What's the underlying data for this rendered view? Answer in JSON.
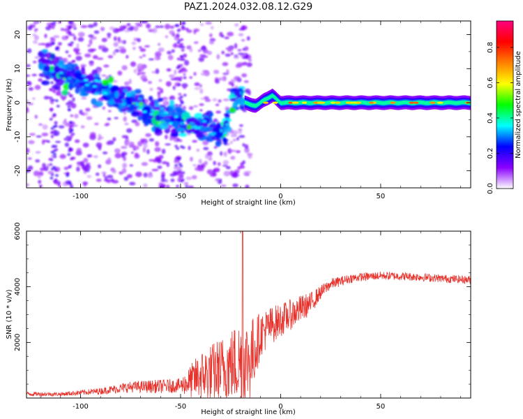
{
  "figure": {
    "title": "PAZ1.2024.032.08.12.G29"
  },
  "chart_data": [
    {
      "type": "heatmap",
      "xlabel": "Height of straight line (km)",
      "ylabel": "Frequency (Hz)",
      "xlim": [
        -127,
        95
      ],
      "ylim": [
        -25,
        24
      ],
      "xticks": [
        -100,
        -50,
        0,
        50
      ],
      "yticks": [
        -20,
        -10,
        0,
        10,
        20
      ],
      "colorbar": {
        "label": "Normalized spectral amplitude",
        "range": [
          0,
          0.95
        ],
        "ticks": [
          "0.0",
          "0.2",
          "0.4",
          "0.6",
          "0.8"
        ],
        "colors": [
          "#ffffff",
          "#8a00ff",
          "#0000ff",
          "#00ffff",
          "#00ff00",
          "#ffff00",
          "#ff8000",
          "#ff0000",
          "#ff0080"
        ]
      },
      "ridge": {
        "x": [
          -120,
          -105,
          -90,
          -75,
          -60,
          -45,
          -35,
          -28,
          -22,
          -18,
          -12,
          -8,
          -4,
          0,
          10,
          20,
          40,
          60,
          80,
          95
        ],
        "freq": [
          11,
          8,
          4,
          0,
          -4,
          -6,
          -7,
          -9,
          3,
          0,
          -1,
          1,
          2,
          0,
          0,
          0,
          0,
          0,
          0,
          0
        ]
      },
      "band": {
        "x_start": -18,
        "x_end": 95,
        "freq": 0,
        "amplitude": 0.45
      }
    },
    {
      "type": "line",
      "xlabel": "Height of straight line (km)",
      "ylabel": "SNR (10 * v/v)",
      "xlim": [
        -127,
        95
      ],
      "ylim": [
        0,
        6000
      ],
      "xticks": [
        -100,
        -50,
        0,
        50
      ],
      "yticks": [
        2000,
        4000,
        6000
      ],
      "color": "#e8322c",
      "x": [
        -127,
        -110,
        -90,
        -75,
        -60,
        -50,
        -45,
        -40,
        -30,
        -25,
        -20,
        -15,
        -10,
        -5,
        0,
        5,
        10,
        15,
        20,
        25,
        30,
        35,
        40,
        50,
        60,
        70,
        80,
        95
      ],
      "mean": [
        150,
        140,
        250,
        400,
        420,
        450,
        600,
        800,
        1000,
        1200,
        1300,
        1400,
        2300,
        2600,
        2800,
        3000,
        3200,
        3400,
        3800,
        4100,
        4200,
        4300,
        4350,
        4400,
        4380,
        4350,
        4300,
        4250
      ],
      "spread": [
        80,
        70,
        120,
        200,
        250,
        250,
        600,
        900,
        1200,
        1300,
        1600,
        1500,
        800,
        700,
        600,
        550,
        500,
        400,
        250,
        200,
        180,
        160,
        150,
        150,
        150,
        150,
        140,
        150
      ],
      "peak": {
        "x": -19,
        "y": 6000
      }
    }
  ]
}
